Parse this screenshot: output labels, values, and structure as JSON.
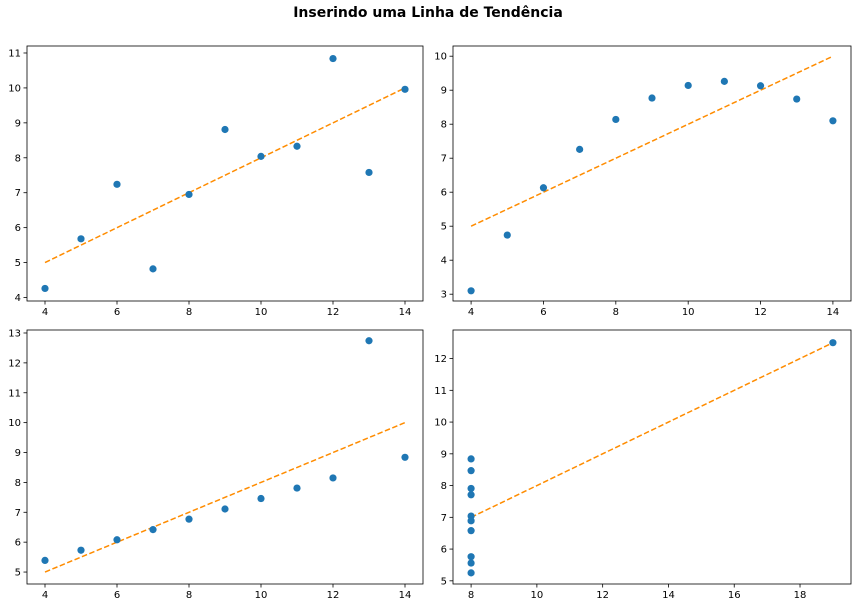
{
  "suptitle": "Inserindo uma Linha de Tendência",
  "colors": {
    "scatter": "#1f77b4",
    "trend": "#ff8c00",
    "axes": "#000000"
  },
  "chart_data": [
    {
      "type": "scatter",
      "title": "",
      "xlabel": "",
      "ylabel": "",
      "grid": false,
      "xlim": [
        3.5,
        14.5
      ],
      "ylim": [
        3.9,
        11.2
      ],
      "xticks": [
        4,
        6,
        8,
        10,
        12,
        14
      ],
      "yticks": [
        4,
        5,
        6,
        7,
        8,
        9,
        10,
        11
      ],
      "series": [
        {
          "kind": "points",
          "x": [
            10,
            8,
            13,
            9,
            11,
            14,
            6,
            4,
            12,
            7,
            5
          ],
          "y": [
            8.04,
            6.95,
            7.58,
            8.81,
            8.33,
            9.96,
            7.24,
            4.26,
            10.84,
            4.82,
            5.68
          ]
        },
        {
          "kind": "trendline",
          "style": "dashed",
          "x": [
            4,
            14
          ],
          "y": [
            5.0,
            10.0
          ]
        }
      ]
    },
    {
      "type": "scatter",
      "title": "",
      "xlabel": "",
      "ylabel": "",
      "grid": false,
      "xlim": [
        3.5,
        14.5
      ],
      "ylim": [
        2.8,
        10.3
      ],
      "xticks": [
        4,
        6,
        8,
        10,
        12,
        14
      ],
      "yticks": [
        3,
        4,
        5,
        6,
        7,
        8,
        9,
        10
      ],
      "series": [
        {
          "kind": "points",
          "x": [
            10,
            8,
            13,
            9,
            11,
            14,
            6,
            4,
            12,
            7,
            5
          ],
          "y": [
            9.14,
            8.14,
            8.74,
            8.77,
            9.26,
            8.1,
            6.13,
            3.1,
            9.13,
            7.26,
            4.74
          ]
        },
        {
          "kind": "trendline",
          "style": "dashed",
          "x": [
            4,
            14
          ],
          "y": [
            5.0,
            10.0
          ]
        }
      ]
    },
    {
      "type": "scatter",
      "title": "",
      "xlabel": "",
      "ylabel": "",
      "grid": false,
      "xlim": [
        3.5,
        14.5
      ],
      "ylim": [
        4.6,
        13.1
      ],
      "xticks": [
        4,
        6,
        8,
        10,
        12,
        14
      ],
      "yticks": [
        5,
        6,
        7,
        8,
        9,
        10,
        11,
        12,
        13
      ],
      "series": [
        {
          "kind": "points",
          "x": [
            10,
            8,
            13,
            9,
            11,
            14,
            6,
            4,
            12,
            7,
            5
          ],
          "y": [
            7.46,
            6.77,
            12.74,
            7.11,
            7.81,
            8.84,
            6.08,
            5.39,
            8.15,
            6.42,
            5.73
          ]
        },
        {
          "kind": "trendline",
          "style": "dashed",
          "x": [
            4,
            14
          ],
          "y": [
            5.0,
            10.0
          ]
        }
      ]
    },
    {
      "type": "scatter",
      "title": "",
      "xlabel": "",
      "ylabel": "",
      "grid": false,
      "xlim": [
        7.45,
        19.55
      ],
      "ylim": [
        4.9,
        12.9
      ],
      "xticks": [
        8,
        10,
        12,
        14,
        16,
        18
      ],
      "yticks": [
        5,
        6,
        7,
        8,
        9,
        10,
        11,
        12
      ],
      "series": [
        {
          "kind": "points",
          "x": [
            8,
            8,
            8,
            8,
            8,
            8,
            8,
            19,
            8,
            8,
            8
          ],
          "y": [
            6.58,
            5.76,
            7.71,
            8.84,
            8.47,
            7.04,
            5.25,
            12.5,
            5.56,
            7.91,
            6.89
          ]
        },
        {
          "kind": "trendline",
          "style": "dashed",
          "x": [
            8,
            19
          ],
          "y": [
            7.0,
            12.5
          ]
        }
      ]
    }
  ]
}
